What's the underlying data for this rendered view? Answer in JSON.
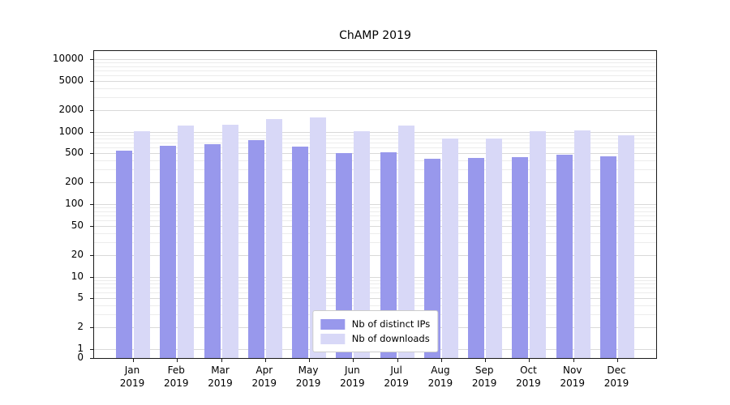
{
  "chart_data": {
    "type": "bar",
    "title": "ChAMP 2019",
    "categories": [
      "Jan",
      "Feb",
      "Mar",
      "Apr",
      "May",
      "Jun",
      "Jul",
      "Aug",
      "Sep",
      "Oct",
      "Nov",
      "Dec"
    ],
    "year": "2019",
    "series": [
      {
        "name": "Nb of distinct IPs",
        "color": "#9898ec",
        "values": [
          550,
          640,
          680,
          770,
          620,
          510,
          520,
          420,
          430,
          440,
          480,
          460
        ]
      },
      {
        "name": "Nb of downloads",
        "color": "#d8d8f7",
        "values": [
          1020,
          1200,
          1250,
          1500,
          1550,
          1020,
          1200,
          800,
          800,
          1020,
          1050,
          900
        ]
      }
    ],
    "yscale": "symlog",
    "yticks": [
      0,
      1,
      2,
      5,
      10,
      20,
      50,
      100,
      200,
      500,
      1000,
      2000,
      5000,
      10000
    ],
    "ylim": [
      0,
      10000
    ],
    "grid": true,
    "grid_major_color": "#d9d9d9",
    "grid_minor_color": "#ececec",
    "legend_position": "lower center"
  }
}
